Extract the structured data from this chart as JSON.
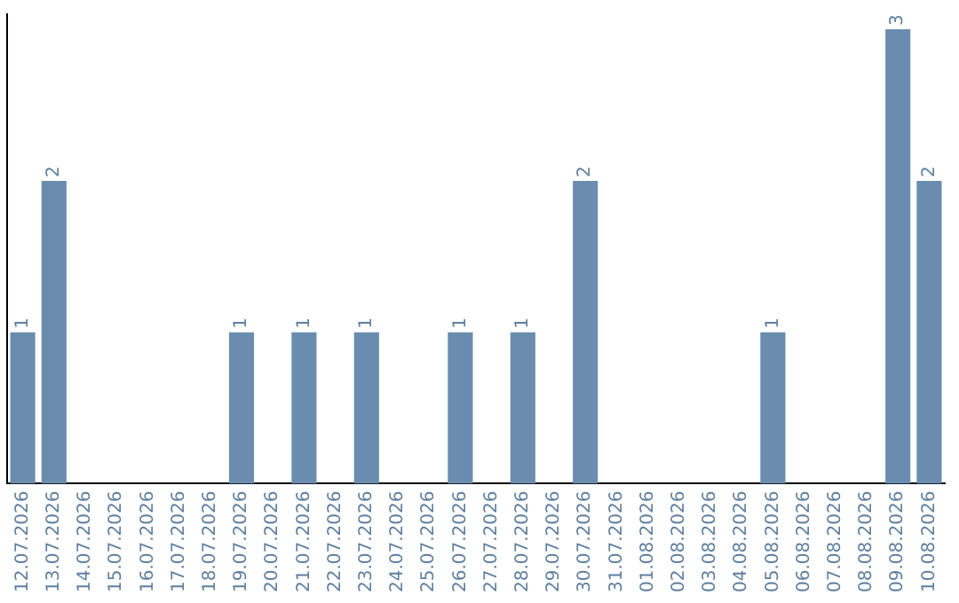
{
  "chart_data": {
    "type": "bar",
    "categories": [
      "12.07.2026",
      "13.07.2026",
      "14.07.2026",
      "15.07.2026",
      "16.07.2026",
      "17.07.2026",
      "18.07.2026",
      "19.07.2026",
      "20.07.2026",
      "21.07.2026",
      "22.07.2026",
      "23.07.2026",
      "24.07.2026",
      "25.07.2026",
      "26.07.2026",
      "27.07.2026",
      "28.07.2026",
      "29.07.2026",
      "30.07.2026",
      "31.07.2026",
      "01.08.2026",
      "02.08.2026",
      "03.08.2026",
      "04.08.2026",
      "05.08.2026",
      "06.08.2026",
      "07.08.2026",
      "08.08.2026",
      "09.08.2026",
      "10.08.2026"
    ],
    "values": [
      1,
      2,
      0,
      0,
      0,
      0,
      0,
      1,
      0,
      1,
      0,
      1,
      0,
      0,
      1,
      0,
      1,
      0,
      2,
      0,
      0,
      0,
      0,
      0,
      1,
      0,
      0,
      0,
      3,
      2
    ],
    "value_labels": [
      "1",
      "2",
      null,
      null,
      null,
      null,
      null,
      "1",
      null,
      "1",
      null,
      "1",
      null,
      null,
      "1",
      null,
      "1",
      null,
      "2",
      null,
      null,
      null,
      null,
      null,
      "1",
      null,
      null,
      null,
      "3",
      "2"
    ],
    "color": "#6a8caf",
    "ylim": [
      0,
      3.1
    ],
    "tick_labels": "x",
    "grid": false,
    "legend": false
  }
}
